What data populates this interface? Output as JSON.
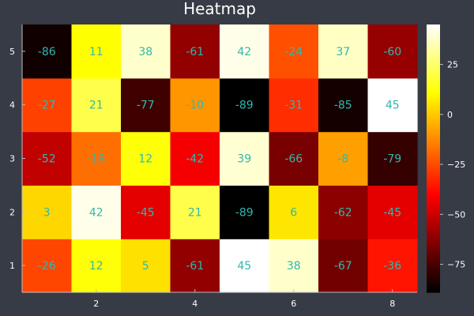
{
  "chart_data": {
    "type": "heatmap",
    "title": "Heatmap",
    "xlabel": "",
    "ylabel": "",
    "x": [
      1,
      2,
      3,
      4,
      5,
      6,
      7,
      8
    ],
    "y": [
      1,
      2,
      3,
      4,
      5
    ],
    "x_ticks": [
      "2",
      "4",
      "6",
      "8"
    ],
    "y_ticks": [
      "1",
      "2",
      "3",
      "4",
      "5"
    ],
    "values": [
      [
        -26,
        12,
        5,
        -61,
        45,
        38,
        -67,
        -36
      ],
      [
        3,
        42,
        -45,
        21,
        -89,
        6,
        -62,
        -45
      ],
      [
        -52,
        -18,
        12,
        -42,
        39,
        -66,
        -8,
        -79
      ],
      [
        -27,
        21,
        -77,
        -10,
        -89,
        -31,
        -85,
        45
      ],
      [
        -86,
        11,
        38,
        -61,
        42,
        -24,
        37,
        -60
      ]
    ],
    "vmin": -89,
    "vmax": 45,
    "colormap": "hot",
    "colorbar_ticks": [
      "25",
      "0",
      "−25",
      "−50",
      "−75"
    ],
    "colorbar_tick_values": [
      25,
      0,
      -25,
      -50,
      -75
    ],
    "label_color": "#2fb8b0",
    "background": "#363b45",
    "grid": false
  }
}
